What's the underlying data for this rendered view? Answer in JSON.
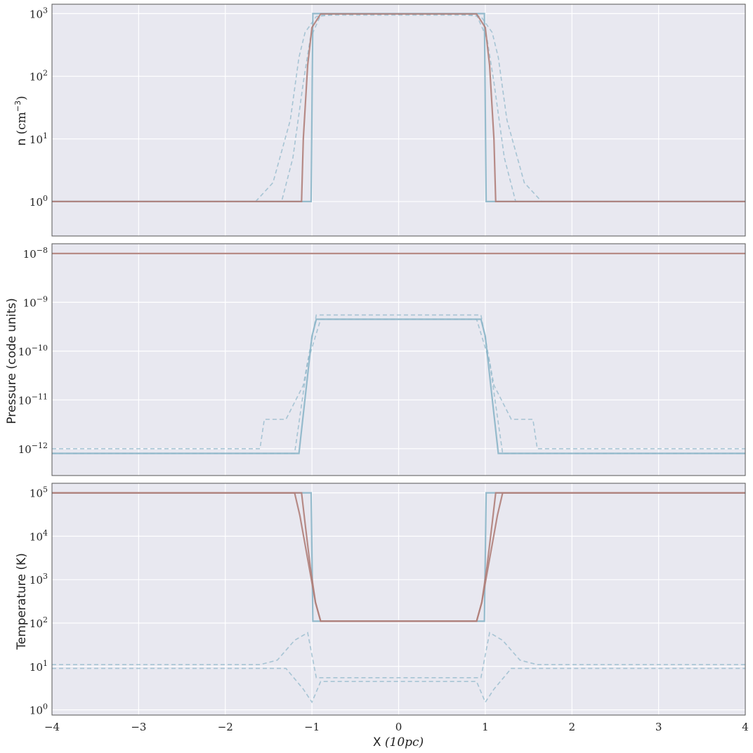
{
  "figure": {
    "xlabel_main": "X",
    "xlabel_unit": "(10pc)",
    "xlim": [
      -4,
      4
    ],
    "xticks": [
      "−4",
      "−3",
      "−2",
      "−1",
      "0",
      "1",
      "2",
      "3",
      "4"
    ],
    "style": {
      "bg": "#e8e8f0",
      "grid": "#ffffff",
      "blue": "#8bb5c8",
      "red": "#b07f7a"
    }
  },
  "chart_data": [
    {
      "type": "line",
      "ylabel_main": "n",
      "ylabel_unit": "(cm",
      "ylabel_exp": "−3",
      "ylabel_close": ")",
      "yscale": "log",
      "ylim_log10": [
        -0.55,
        3.15
      ],
      "yticks": [
        {
          "base": "10",
          "exp": "0"
        },
        {
          "base": "10",
          "exp": "1"
        },
        {
          "base": "10",
          "exp": "2"
        },
        {
          "base": "10",
          "exp": "3"
        }
      ],
      "series": [
        {
          "style": "dashed",
          "color": "blue",
          "x": [
            -4,
            -1.65,
            -1.45,
            -1.25,
            -1.15,
            -1.08,
            -0.95,
            -0.7,
            0.7,
            0.95,
            1.08,
            1.15,
            1.25,
            1.45,
            1.65,
            4
          ],
          "y": [
            1,
            1,
            2,
            20,
            200,
            500,
            900,
            980,
            980,
            900,
            500,
            200,
            20,
            2,
            1,
            1
          ]
        },
        {
          "style": "dashed",
          "color": "blue",
          "x": [
            -4,
            -1.35,
            -1.22,
            -1.1,
            -1.02,
            -0.9,
            0.9,
            1.02,
            1.1,
            1.22,
            1.35,
            4
          ],
          "y": [
            1,
            1,
            5,
            80,
            400,
            950,
            950,
            400,
            80,
            5,
            1,
            1
          ]
        },
        {
          "style": "solid",
          "color": "blue",
          "x": [
            -4,
            -1.01,
            -0.99,
            0.99,
            1.01,
            4
          ],
          "y": [
            1,
            1,
            1000,
            1000,
            1,
            1
          ]
        },
        {
          "style": "solid",
          "color": "red",
          "x": [
            -4,
            -1.12,
            -1.1,
            -1.05,
            -1.0,
            -0.9,
            0.9,
            1.0,
            1.05,
            1.1,
            1.12,
            4
          ],
          "y": [
            1,
            1,
            10,
            150,
            600,
            990,
            990,
            600,
            150,
            10,
            1,
            1
          ]
        }
      ]
    },
    {
      "type": "line",
      "ylabel_main": "Pressure (code units)",
      "yscale": "log",
      "ylim_log10": [
        -12.55,
        -7.8
      ],
      "yticks": [
        {
          "base": "10",
          "exp": "−12"
        },
        {
          "base": "10",
          "exp": "−11"
        },
        {
          "base": "10",
          "exp": "−10"
        },
        {
          "base": "10",
          "exp": "−9"
        },
        {
          "base": "10",
          "exp": "−8"
        }
      ],
      "series": [
        {
          "style": "dashed",
          "color": "blue",
          "x": [
            -4,
            -1.6,
            -1.55,
            -1.3,
            -1.1,
            -0.95,
            0.95,
            1.1,
            1.3,
            1.55,
            1.6,
            4
          ],
          "y": [
            1e-12,
            1e-12,
            4e-12,
            4e-12,
            2e-11,
            5.5e-10,
            5.5e-10,
            2e-11,
            4e-12,
            4e-12,
            1e-12,
            1e-12
          ]
        },
        {
          "style": "dashed",
          "color": "blue",
          "x": [
            -4,
            -1.2,
            -1.05,
            -0.9,
            0.9,
            1.05,
            1.2,
            4
          ],
          "y": [
            8e-13,
            8e-13,
            6e-11,
            4.5e-10,
            4.5e-10,
            6e-11,
            8e-13,
            8e-13
          ]
        },
        {
          "style": "solid",
          "color": "blue",
          "x": [
            -4,
            -1.15,
            -1.0,
            -0.95,
            0.95,
            1.0,
            1.15,
            4
          ],
          "y": [
            8e-13,
            8e-13,
            2e-10,
            4.5e-10,
            4.5e-10,
            2e-10,
            8e-13,
            8e-13
          ]
        },
        {
          "style": "solid",
          "color": "red",
          "x": [
            -4,
            4
          ],
          "y": [
            1e-08,
            1e-08
          ]
        }
      ]
    },
    {
      "type": "line",
      "ylabel_main": "Temperature (K)",
      "yscale": "log",
      "ylim_log10": [
        -0.12,
        5.22
      ],
      "yticks": [
        {
          "base": "10",
          "exp": "0"
        },
        {
          "base": "10",
          "exp": "1"
        },
        {
          "base": "10",
          "exp": "2"
        },
        {
          "base": "10",
          "exp": "3"
        },
        {
          "base": "10",
          "exp": "4"
        },
        {
          "base": "10",
          "exp": "5"
        }
      ],
      "series": [
        {
          "style": "dashed",
          "color": "blue",
          "x": [
            -4,
            -1.6,
            -1.4,
            -1.2,
            -1.05,
            -0.95,
            0.95,
            1.05,
            1.2,
            1.4,
            1.6,
            4
          ],
          "y": [
            11,
            11,
            14,
            40,
            60,
            5.5,
            5.5,
            60,
            40,
            14,
            11,
            11
          ]
        },
        {
          "style": "dashed",
          "color": "blue",
          "x": [
            -4,
            -1.3,
            -1.1,
            -1.0,
            -0.9,
            0.9,
            1.0,
            1.1,
            1.3,
            4
          ],
          "y": [
            9,
            9,
            3,
            1.5,
            4.5,
            4.5,
            1.5,
            3,
            9,
            9
          ]
        },
        {
          "style": "solid",
          "color": "blue",
          "x": [
            -4,
            -1.01,
            -0.99,
            0.99,
            1.01,
            4
          ],
          "y": [
            100000,
            100000,
            110,
            110,
            100000,
            100000
          ]
        },
        {
          "style": "solid",
          "color": "red",
          "x": [
            -4,
            -1.12,
            -1.08,
            -1.02,
            -0.96,
            -0.9,
            0.9,
            0.96,
            1.02,
            1.08,
            1.12,
            4
          ],
          "y": [
            100000,
            100000,
            20000,
            2000,
            300,
            110,
            110,
            300,
            2000,
            20000,
            100000,
            100000
          ]
        },
        {
          "style": "solid",
          "color": "red",
          "x": [
            -4,
            -1.2,
            -1.14,
            -1.05,
            -0.96,
            -0.9,
            0.9,
            0.96,
            1.05,
            1.14,
            1.2,
            4
          ],
          "y": [
            100000,
            100000,
            30000,
            3000,
            300,
            110,
            110,
            300,
            3000,
            30000,
            100000,
            100000
          ]
        }
      ]
    }
  ]
}
